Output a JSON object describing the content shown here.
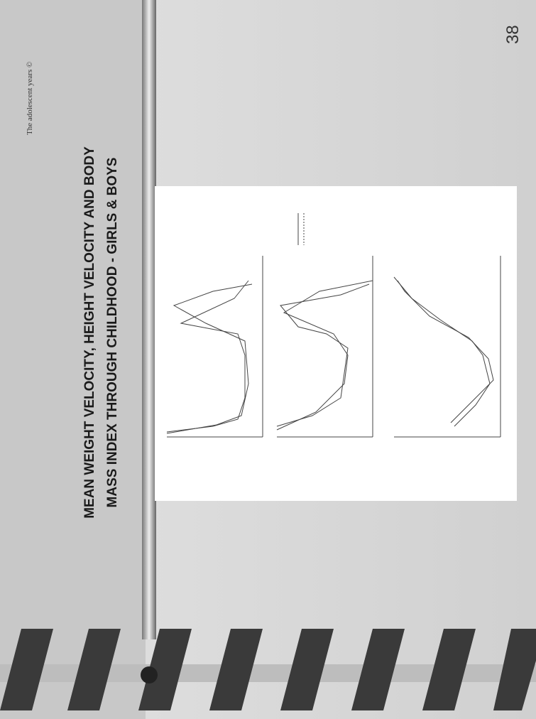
{
  "slide": {
    "header": "The adolescent years ©",
    "title_lines": [
      "MEAN WEIGHT VELOCITY, HEIGHT VELOCITY AND BODY",
      "MASS INDEX THROUGH CHILDHOOD - GIRLS & BOYS"
    ],
    "page_number": "38"
  }
}
